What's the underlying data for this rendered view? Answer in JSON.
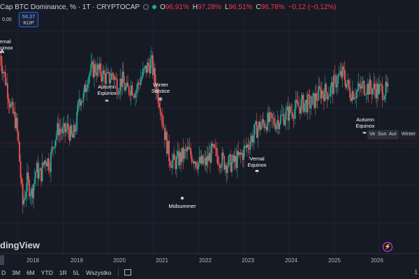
{
  "header": {
    "title": "Cap BTC Dominance, % · 1T · CRYPTOCAP",
    "ohlc": [
      {
        "key": "O",
        "value": "96,91%"
      },
      {
        "key": "H",
        "value": "97,28%"
      },
      {
        "key": "L",
        "value": "96,51%"
      },
      {
        "key": "C",
        "value": "96,78%"
      },
      {
        "key": "",
        "value": "−0,12 (−0,12%)"
      }
    ]
  },
  "buy_box": {
    "price": "58,37",
    "label": "KUP"
  },
  "left_value": "0,00",
  "logo": "dingView",
  "annotations": [
    {
      "lines": [
        "Vernal",
        "Equinox"
      ],
      "icon": "sprout-icon"
    },
    {
      "lines": [
        "Autumn",
        "Equinox"
      ],
      "icon": "leaf-icon"
    },
    {
      "lines": [
        "Winter",
        "Solstice"
      ],
      "icon": "snowflake-icon"
    },
    {
      "lines": [
        "Midsummer"
      ],
      "icon": "sun-icon"
    },
    {
      "lines": [
        "Vernal",
        "Equinox"
      ],
      "icon": "umbrella-icon"
    },
    {
      "lines": [
        "Autumn",
        "Equinox"
      ],
      "icon": "leaf-icon"
    }
  ],
  "season_tags": [
    "Ve",
    "Sun",
    "Aut",
    "Winter"
  ],
  "x_axis": [
    "2018",
    "2019",
    "2020",
    "2021",
    "2022",
    "2023",
    "2024",
    "2025",
    "2026"
  ],
  "bottom_bar": {
    "ranges": [
      "D",
      "3M",
      "6M",
      "YTD",
      "1R",
      "5L",
      "Wszystko"
    ],
    "right_text": "1"
  },
  "colors": {
    "up": "#26a69a",
    "down": "#ef5350",
    "background": "#161a25"
  },
  "chart_data": {
    "type": "candlestick",
    "x_labels": [
      "2018",
      "2019",
      "2020",
      "2021",
      "2022",
      "2023",
      "2024",
      "2025",
      "2026"
    ],
    "series": [
      {
        "name": "Cap BTC Dominance, %",
        "values": [
          [
            2017.6,
            96.5
          ],
          [
            2017.75,
            94.0
          ],
          [
            2017.85,
            92.0
          ],
          [
            2017.95,
            91.0
          ],
          [
            2018.0,
            89.5
          ],
          [
            2018.1,
            84.0
          ],
          [
            2018.2,
            86.0
          ],
          [
            2018.3,
            85.0
          ],
          [
            2018.4,
            87.0
          ],
          [
            2018.5,
            86.5
          ],
          [
            2018.6,
            88.0
          ],
          [
            2018.7,
            87.5
          ],
          [
            2018.8,
            89.5
          ],
          [
            2018.9,
            90.5
          ],
          [
            2019.0,
            90.0
          ],
          [
            2019.1,
            90.5
          ],
          [
            2019.2,
            89.5
          ],
          [
            2019.3,
            91.0
          ],
          [
            2019.35,
            93.0
          ],
          [
            2019.45,
            93.0
          ],
          [
            2019.55,
            95.0
          ],
          [
            2019.7,
            95.5
          ],
          [
            2019.85,
            95.0
          ],
          [
            2020.0,
            94.5
          ],
          [
            2020.1,
            95.0
          ],
          [
            2020.2,
            94.0
          ],
          [
            2020.3,
            94.5
          ],
          [
            2020.4,
            93.5
          ],
          [
            2020.5,
            94.0
          ],
          [
            2020.6,
            93.5
          ],
          [
            2020.7,
            94.5
          ],
          [
            2020.85,
            95.5
          ],
          [
            2020.95,
            96.0
          ],
          [
            2021.05,
            94.0
          ],
          [
            2021.15,
            92.5
          ],
          [
            2021.25,
            90.0
          ],
          [
            2021.35,
            88.0
          ],
          [
            2021.45,
            87.5
          ],
          [
            2021.6,
            88.0
          ],
          [
            2021.75,
            88.5
          ],
          [
            2021.9,
            88.0
          ],
          [
            2022.0,
            87.5
          ],
          [
            2022.15,
            87.5
          ],
          [
            2022.3,
            88.5
          ],
          [
            2022.45,
            88.0
          ],
          [
            2022.6,
            87.5
          ],
          [
            2022.75,
            87.5
          ],
          [
            2022.9,
            88.0
          ],
          [
            2023.0,
            88.5
          ],
          [
            2023.15,
            89.5
          ],
          [
            2023.3,
            90.5
          ],
          [
            2023.5,
            91.0
          ],
          [
            2023.7,
            91.0
          ],
          [
            2023.9,
            91.5
          ],
          [
            2024.1,
            92.0
          ],
          [
            2024.3,
            92.5
          ],
          [
            2024.5,
            92.5
          ],
          [
            2024.7,
            93.5
          ],
          [
            2024.9,
            93.5
          ],
          [
            2025.05,
            94.5
          ],
          [
            2025.2,
            95.0
          ],
          [
            2025.35,
            93.5
          ],
          [
            2025.5,
            93.5
          ],
          [
            2025.65,
            94.0
          ],
          [
            2025.8,
            93.8
          ],
          [
            2025.95,
            93.7
          ],
          [
            2026.1,
            93.6
          ],
          [
            2026.2,
            93.5
          ]
        ]
      }
    ]
  }
}
